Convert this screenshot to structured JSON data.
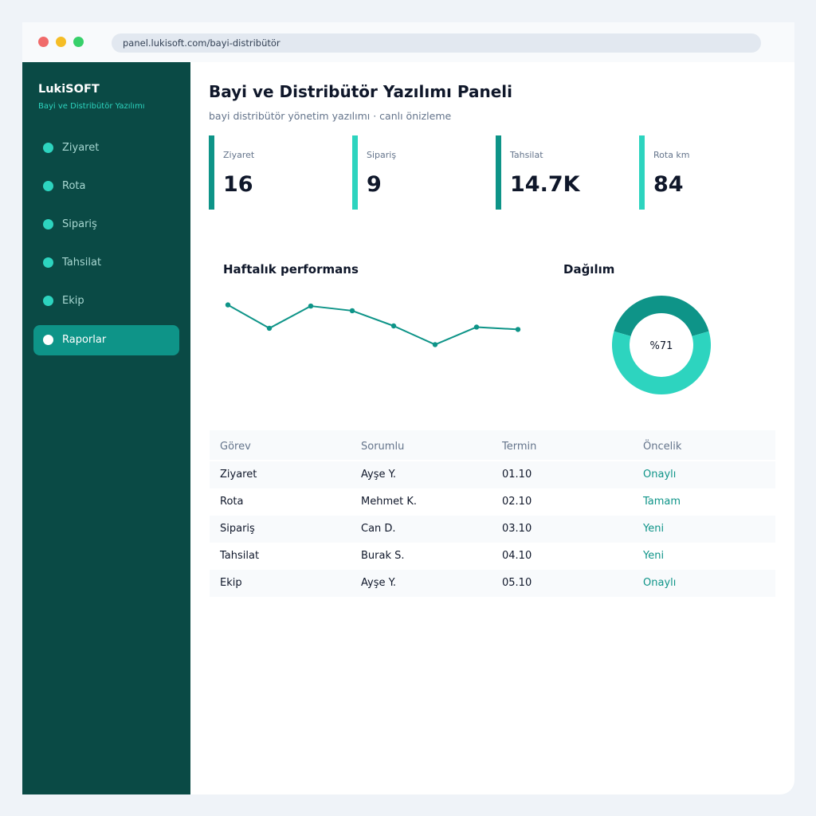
{
  "browser": {
    "url": "panel.lukisoft.com/bayi-distribütör"
  },
  "sidebar": {
    "brand": "LukiSOFT",
    "brand_sub": "Bayi ve Distribütör Yazılımı",
    "items": [
      {
        "label": "Ziyaret",
        "active": false
      },
      {
        "label": "Rota",
        "active": false
      },
      {
        "label": "Sipariş",
        "active": false
      },
      {
        "label": "Tahsilat",
        "active": false
      },
      {
        "label": "Ekip",
        "active": false
      },
      {
        "label": "Raporlar",
        "active": true
      }
    ]
  },
  "header": {
    "title": "Bayi ve Distribütör Yazılımı Paneli",
    "subtitle": "bayi distribütör yönetim yazılımı · canlı önizleme"
  },
  "kpis": [
    {
      "label": "Ziyaret",
      "value": "16",
      "color": "#0e9488"
    },
    {
      "label": "Sipariş",
      "value": "9",
      "color": "#2dd4bf"
    },
    {
      "label": "Tahsilat",
      "value": "14.7K",
      "color": "#0e9488"
    },
    {
      "label": "Rota km",
      "value": "84",
      "color": "#2dd4bf"
    }
  ],
  "weekly": {
    "title": "Haftalık performans"
  },
  "distribution": {
    "title": "Dağılım",
    "center_label": "%71"
  },
  "chart_data": [
    {
      "type": "line",
      "title": "Haftalık performans",
      "x": [
        1,
        2,
        3,
        4,
        5,
        6,
        7,
        8
      ],
      "series": [
        {
          "values": [
            88,
            68,
            87,
            83,
            70,
            54,
            69,
            67
          ]
        }
      ],
      "ylim": [
        40,
        100
      ],
      "color": "#0e9488",
      "grid": false
    },
    {
      "type": "pie",
      "title": "Dağılım",
      "labels": [
        "",
        ""
      ],
      "values": [
        41,
        59
      ],
      "colors": [
        "#0e9488",
        "#2dd4bf"
      ],
      "donut": true,
      "center_label": "%71"
    }
  ],
  "table": {
    "headers": [
      "Görev",
      "Sorumlu",
      "Termin",
      "Öncelik"
    ],
    "rows": [
      [
        "Ziyaret",
        "Ayşe Y.",
        "01.10",
        "Onaylı"
      ],
      [
        "Rota",
        "Mehmet K.",
        "02.10",
        "Tamam"
      ],
      [
        "Sipariş",
        "Can D.",
        "03.10",
        "Yeni"
      ],
      [
        "Tahsilat",
        "Burak S.",
        "04.10",
        "Yeni"
      ],
      [
        "Ekip",
        "Ayşe Y.",
        "05.10",
        "Onaylı"
      ]
    ]
  },
  "colors": {
    "accent": "#0e9488",
    "accent_light": "#2dd4bf",
    "sidebar": "#0a4a45"
  }
}
